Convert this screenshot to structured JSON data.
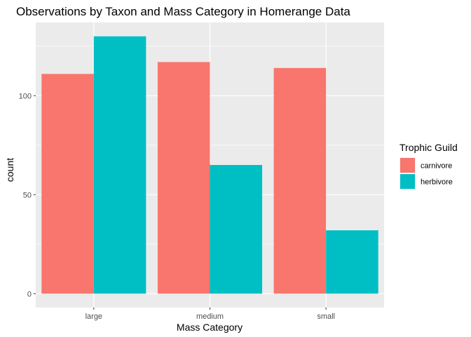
{
  "chart_data": {
    "type": "bar",
    "title": "Observations by Taxon and Mass Category in Homerange Data",
    "xlabel": "Mass Category",
    "ylabel": "count",
    "categories": [
      "large",
      "medium",
      "small"
    ],
    "series": [
      {
        "name": "carnivore",
        "values": [
          111,
          117,
          114
        ],
        "color": "#F8766D"
      },
      {
        "name": "herbivore",
        "values": [
          130,
          65,
          32
        ],
        "color": "#00BFC4"
      }
    ],
    "y_ticks": [
      0,
      50,
      100
    ],
    "ylim": [
      -7,
      137
    ],
    "grid": true,
    "panel_background": "#EBEBEB",
    "legend": {
      "title": "Trophic Guild",
      "placement": "right"
    }
  }
}
